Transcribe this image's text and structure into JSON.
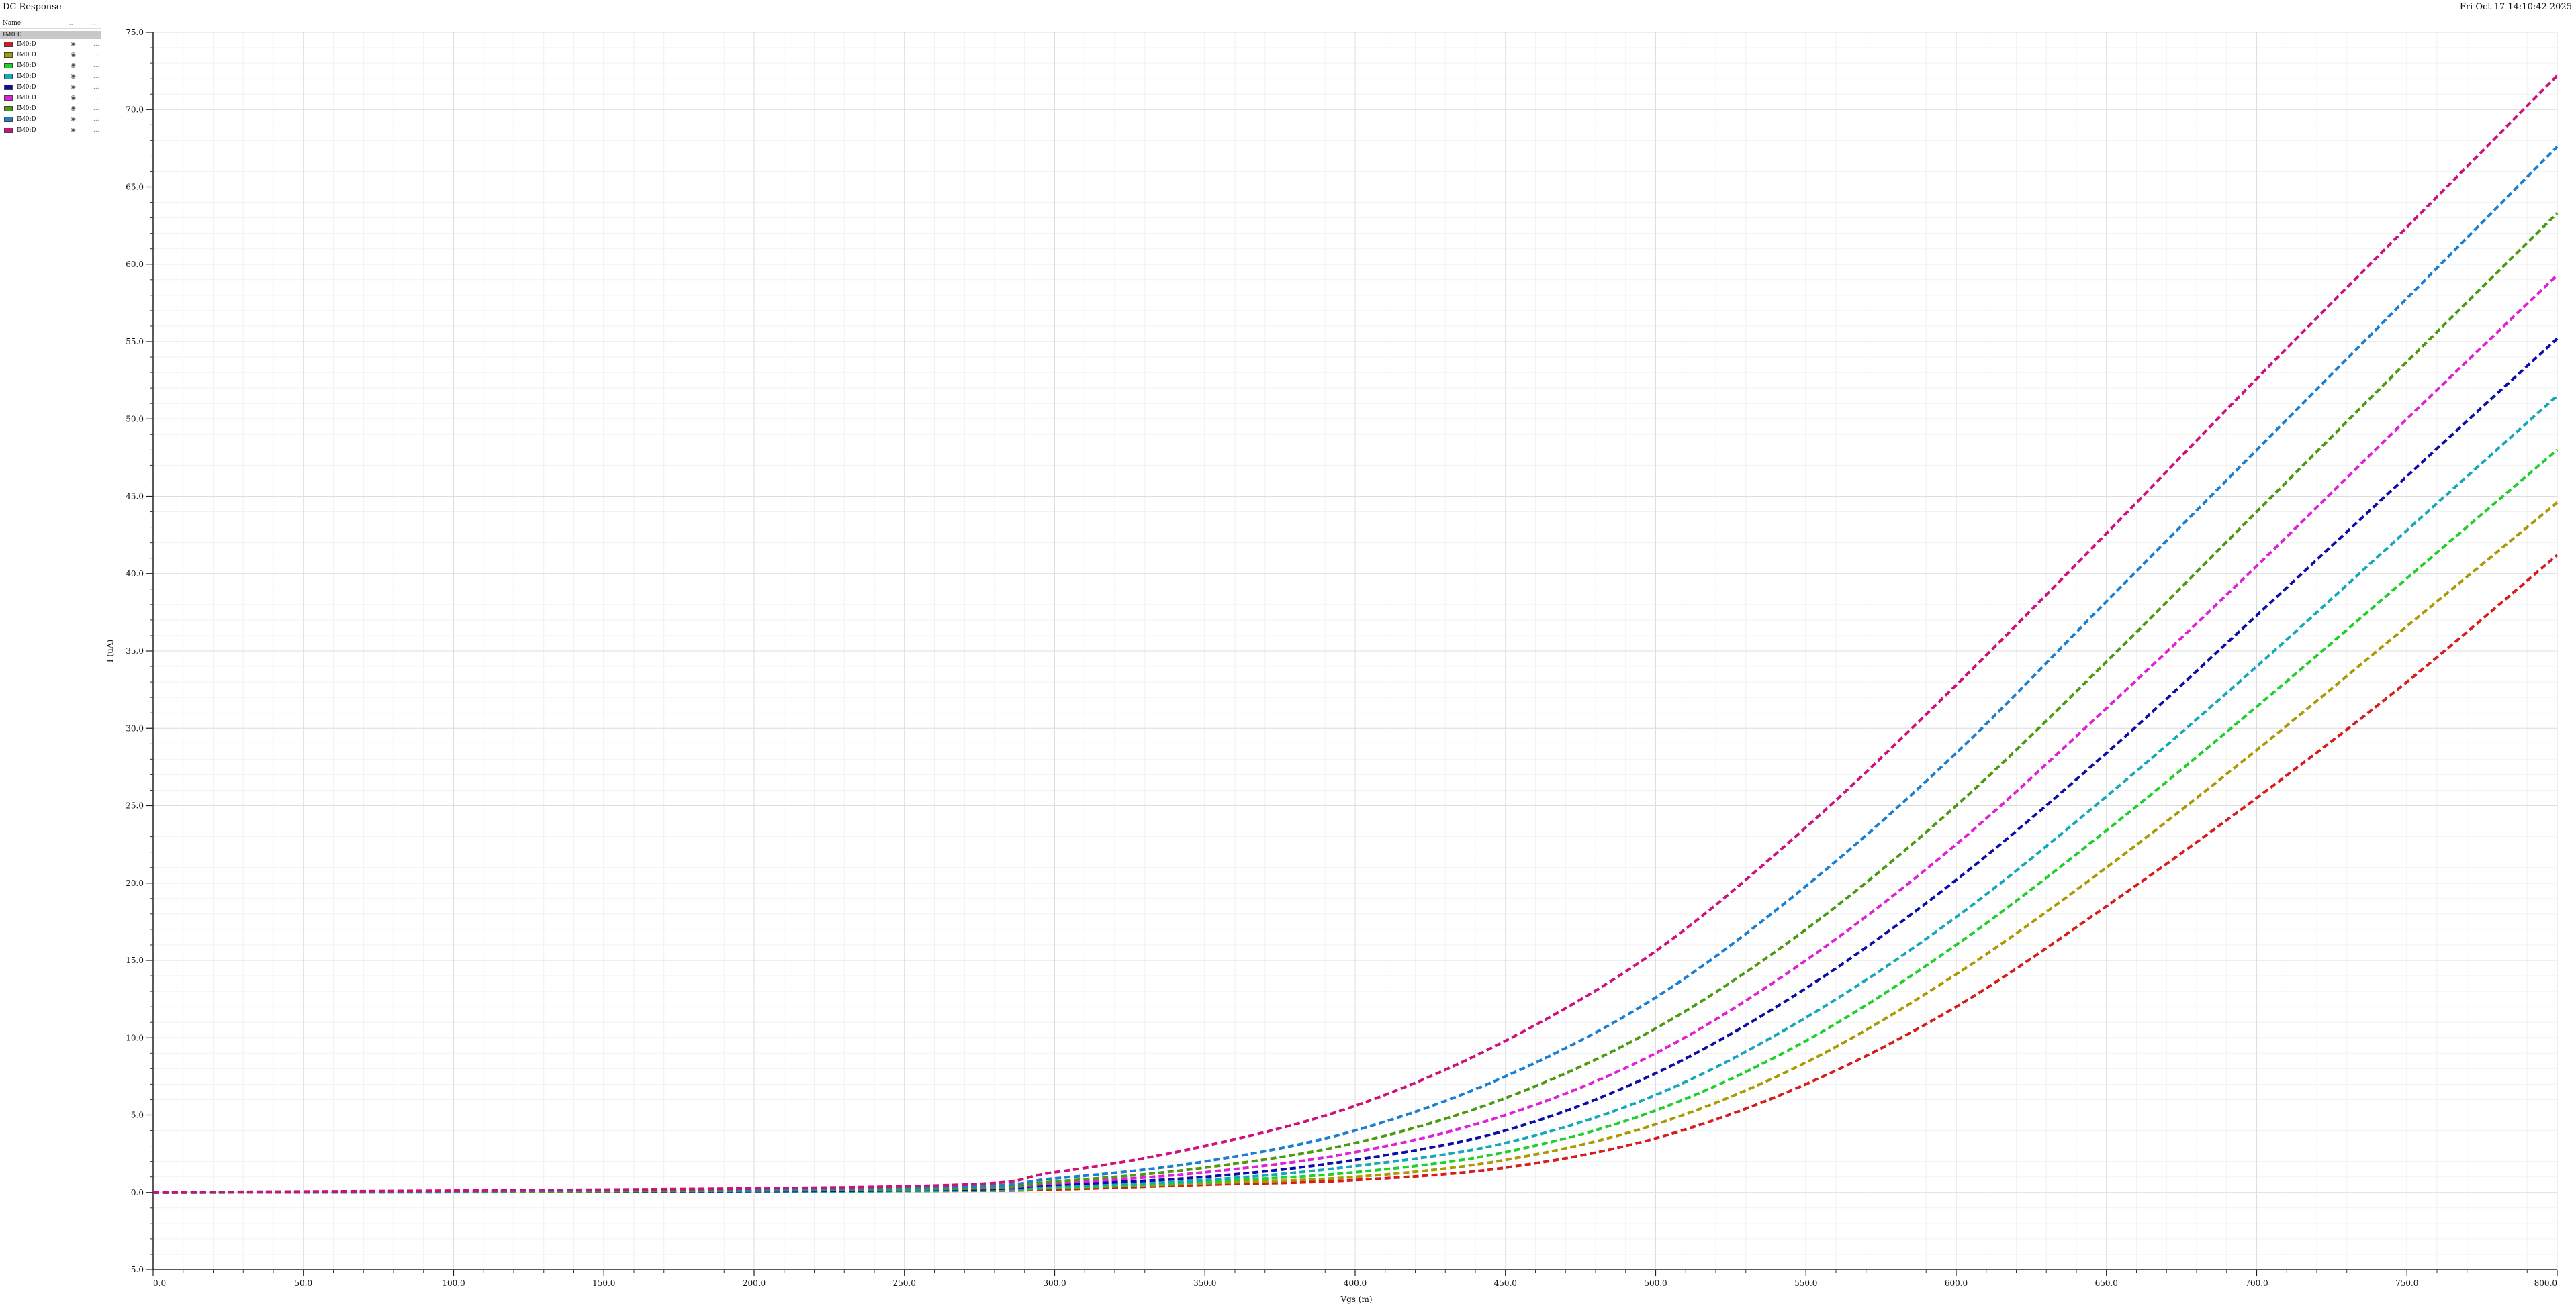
{
  "window": {
    "title": "DC Response",
    "timestamp": "Fri Oct 17 14:10:42 2025"
  },
  "legend": {
    "header_name": "Name",
    "header_vis": "...",
    "header_more": "...",
    "group_label": "IM0:D",
    "visibility_icon": "eye-icon",
    "more_label": "..."
  },
  "chart_data": {
    "type": "line",
    "title": "DC Response",
    "xlabel": "Vgs (m)",
    "ylabel": "I (uA)",
    "xlim": [
      0,
      800
    ],
    "ylim": [
      -5,
      75
    ],
    "x_ticks": [
      "0.0",
      "50.0",
      "100.0",
      "150.0",
      "200.0",
      "250.0",
      "300.0",
      "350.0",
      "400.0",
      "450.0",
      "500.0",
      "550.0",
      "600.0",
      "650.0",
      "700.0",
      "750.0",
      "800.0"
    ],
    "y_ticks": [
      "-5.0",
      "0.0",
      "5.0",
      "10.0",
      "15.0",
      "20.0",
      "25.0",
      "30.0",
      "35.0",
      "40.0",
      "45.0",
      "50.0",
      "55.0",
      "60.0",
      "65.0",
      "70.0",
      "75.0"
    ],
    "grid": true,
    "line_style": "dashed",
    "x": [
      0,
      250,
      300,
      350,
      400,
      450,
      500,
      550,
      600,
      650,
      700,
      750,
      800
    ],
    "series": [
      {
        "name": "IM0:D",
        "color": "#d81b1b",
        "values": [
          0,
          0.1,
          0.2,
          0.5,
          0.8,
          1.6,
          3.5,
          7.0,
          12.0,
          18.5,
          25.5,
          33.0,
          41.2
        ]
      },
      {
        "name": "IM0:D",
        "color": "#a89a00",
        "values": [
          0,
          0.1,
          0.3,
          0.6,
          1.0,
          2.1,
          4.4,
          8.4,
          14.1,
          21.0,
          28.6,
          36.6,
          44.6
        ]
      },
      {
        "name": "IM0:D",
        "color": "#1fcf2a",
        "values": [
          0,
          0.1,
          0.3,
          0.7,
          1.3,
          2.6,
          5.3,
          9.8,
          16.0,
          23.4,
          31.4,
          39.7,
          48.0
        ]
      },
      {
        "name": "IM0:D",
        "color": "#14a8b8",
        "values": [
          0,
          0.1,
          0.4,
          0.8,
          1.7,
          3.2,
          6.3,
          11.3,
          17.8,
          25.6,
          34.0,
          42.8,
          51.5
        ]
      },
      {
        "name": "IM0:D",
        "color": "#0c0ca8",
        "values": [
          0,
          0.15,
          0.5,
          1.0,
          2.1,
          4.0,
          7.7,
          13.2,
          20.2,
          28.4,
          37.3,
          46.3,
          55.2
        ]
      },
      {
        "name": "IM0:D",
        "color": "#e020d8",
        "values": [
          0,
          0.2,
          0.6,
          1.3,
          2.6,
          5.0,
          9.0,
          15.0,
          22.5,
          31.3,
          40.5,
          50.0,
          59.3
        ]
      },
      {
        "name": "IM0:D",
        "color": "#4a9a10",
        "values": [
          0,
          0.2,
          0.7,
          1.6,
          3.2,
          6.1,
          10.6,
          17.0,
          25.0,
          34.3,
          44.0,
          53.7,
          63.3
        ]
      },
      {
        "name": "IM0:D",
        "color": "#1a7fd0",
        "values": [
          0,
          0.3,
          0.9,
          2.0,
          4.0,
          7.5,
          12.6,
          19.8,
          28.4,
          38.2,
          48.0,
          57.8,
          67.6
        ]
      },
      {
        "name": "IM0:D",
        "color": "#d0107a",
        "values": [
          0,
          0.4,
          1.3,
          3.0,
          5.6,
          9.8,
          15.6,
          23.6,
          32.8,
          42.6,
          52.6,
          62.4,
          72.2
        ]
      }
    ]
  }
}
